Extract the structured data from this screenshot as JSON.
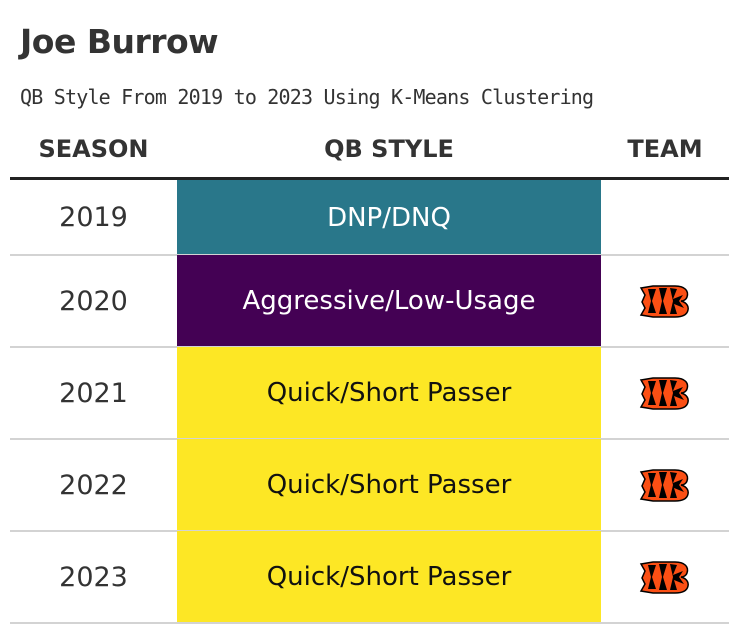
{
  "title": "Joe Burrow",
  "subtitle": "QB Style From 2019 to 2023 Using K-Means Clustering",
  "headers": {
    "season": "SEASON",
    "style": "QB STYLE",
    "team": "TEAM"
  },
  "colors": {
    "DNP/DNQ": "#29778a",
    "Aggressive/Low-Usage": "#440154",
    "Quick/Short Passer": "#fde725",
    "bengals_orange": "#fb4f14",
    "bengals_black": "#000000"
  },
  "chart_data": {
    "type": "table",
    "columns": [
      "SEASON",
      "QB STYLE",
      "TEAM"
    ],
    "rows": [
      {
        "season": "2019",
        "style": "DNP/DNQ",
        "team_logo": ""
      },
      {
        "season": "2020",
        "style": "Aggressive/Low-Usage",
        "team_logo": "bengals-logo"
      },
      {
        "season": "2021",
        "style": "Quick/Short Passer",
        "team_logo": "bengals-logo"
      },
      {
        "season": "2022",
        "style": "Quick/Short Passer",
        "team_logo": "bengals-logo"
      },
      {
        "season": "2023",
        "style": "Quick/Short Passer",
        "team_logo": "bengals-logo"
      }
    ]
  }
}
